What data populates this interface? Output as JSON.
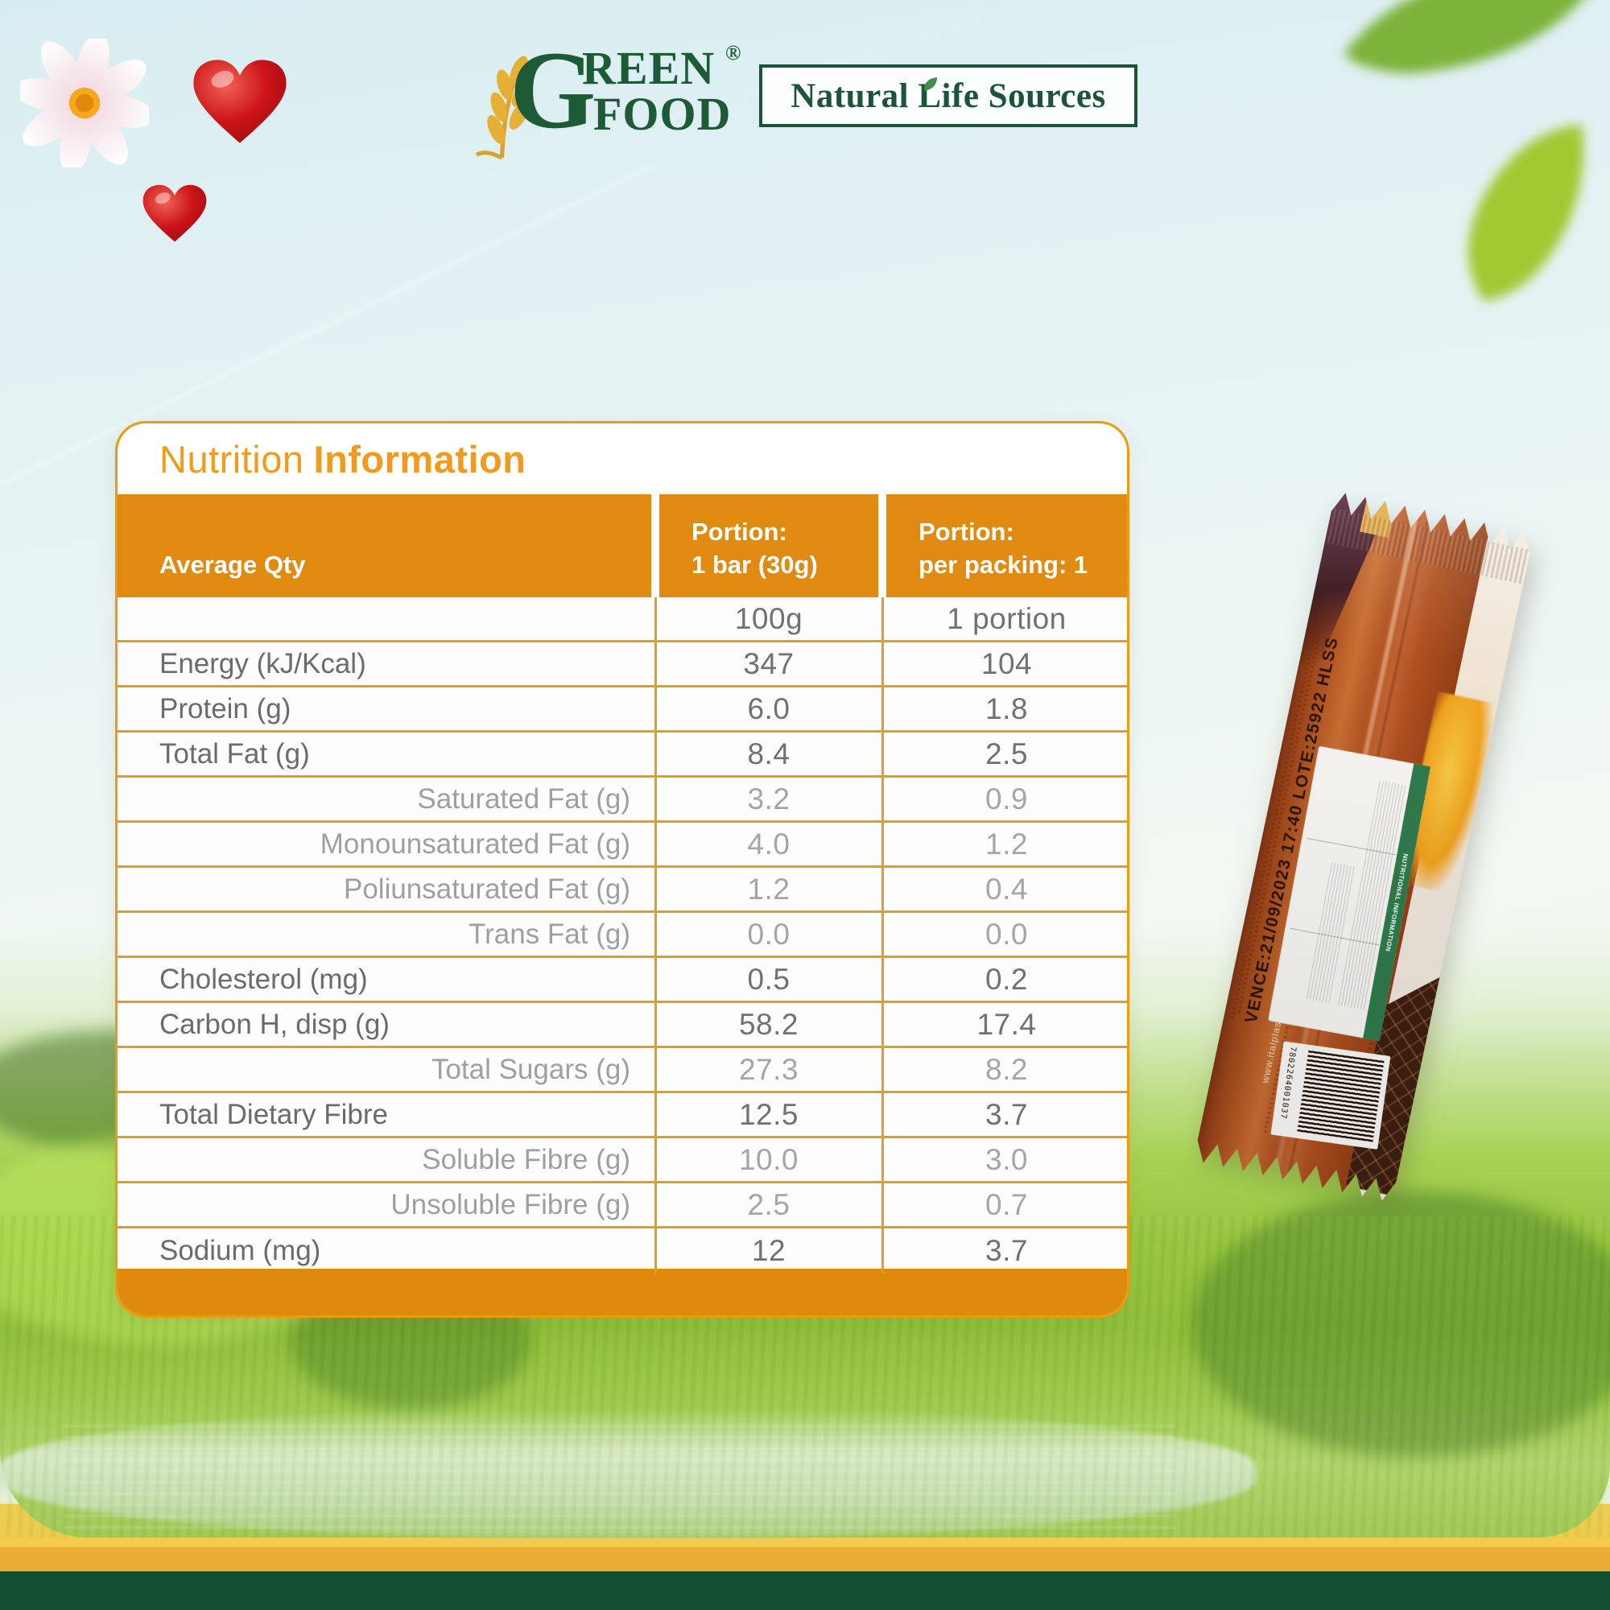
{
  "branding": {
    "green_food_logo": {
      "g": "G",
      "reen": "REEN",
      "food": "FOOD",
      "registered": "®"
    },
    "natural_life_logo": {
      "text": "Natural Life Sources"
    }
  },
  "nutrition_card": {
    "title": {
      "regular": "Nutrition",
      "bold": "Information"
    },
    "columns": {
      "avg_qty": "Average Qty",
      "portion_bar_l1": "Portion:",
      "portion_bar_l2": "1 bar (30g)",
      "portion_pack_l1": "Portion:",
      "portion_pack_l2": "per packing: 1"
    },
    "rows": [
      {
        "label": "",
        "per_100g": "100g",
        "per_portion": "1 portion",
        "indent": false
      },
      {
        "label": "Energy (kJ/Kcal)",
        "per_100g": "347",
        "per_portion": "104",
        "indent": false
      },
      {
        "label": "Protein (g)",
        "per_100g": "6.0",
        "per_portion": "1.8",
        "indent": false
      },
      {
        "label": "Total Fat (g)",
        "per_100g": "8.4",
        "per_portion": "2.5",
        "indent": false
      },
      {
        "label": "Saturated Fat (g)",
        "per_100g": "3.2",
        "per_portion": "0.9",
        "indent": true
      },
      {
        "label": "Monounsaturated Fat (g)",
        "per_100g": "4.0",
        "per_portion": "1.2",
        "indent": true
      },
      {
        "label": "Poliunsaturated Fat (g)",
        "per_100g": "1.2",
        "per_portion": "0.4",
        "indent": true
      },
      {
        "label": "Trans Fat (g)",
        "per_100g": "0.0",
        "per_portion": "0.0",
        "indent": true
      },
      {
        "label": "Cholesterol (mg)",
        "per_100g": "0.5",
        "per_portion": "0.2",
        "indent": false
      },
      {
        "label": "Carbon H, disp (g)",
        "per_100g": "58.2",
        "per_portion": "17.4",
        "indent": false
      },
      {
        "label": "Total Sugars (g)",
        "per_100g": "27.3",
        "per_portion": "8.2",
        "indent": true
      },
      {
        "label": "Total Dietary Fibre",
        "per_100g": "12.5",
        "per_portion": "3.7",
        "indent": false
      },
      {
        "label": "Soluble Fibre (g)",
        "per_100g": "10.0",
        "per_portion": "3.0",
        "indent": true
      },
      {
        "label": "Unsoluble Fibre (g)",
        "per_100g": "2.5",
        "per_portion": "0.7",
        "indent": true
      },
      {
        "label": "Sodium (mg)",
        "per_100g": "12",
        "per_portion": "3.7",
        "indent": false
      }
    ]
  },
  "package": {
    "expiry_line": "VENCE:21/09/2023  17:40  LOTE:25922  HLSS",
    "label_title": "NUTRITIONAL INFORMATION",
    "website": "www.italplast.cl",
    "barcode_digits": "7802264001037"
  },
  "colors": {
    "accent_orange": "#E08A12",
    "title_orange": "#F29A1C",
    "brand_green": "#1C5B36",
    "footer_green": "#124E32",
    "stripe_yellow": "#F3CA4C"
  }
}
